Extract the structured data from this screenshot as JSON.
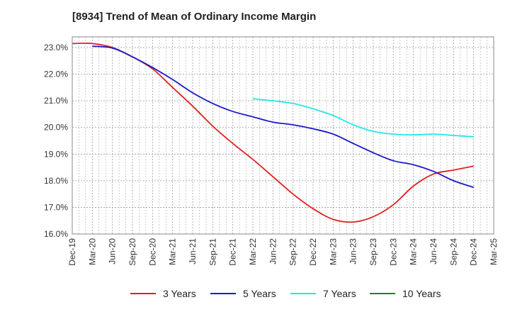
{
  "chart_data": {
    "type": "line",
    "title": "[8934]  Trend of Mean of Ordinary Income Margin",
    "xlabel": "",
    "ylabel": "",
    "x_categories": [
      "Dec-19",
      "Mar-20",
      "Jun-20",
      "Sep-20",
      "Dec-20",
      "Mar-21",
      "Jun-21",
      "Sep-21",
      "Dec-21",
      "Mar-22",
      "Jun-22",
      "Sep-22",
      "Dec-22",
      "Mar-23",
      "Jun-23",
      "Sep-23",
      "Dec-23",
      "Mar-24",
      "Jun-24",
      "Sep-24",
      "Dec-24",
      "Mar-25"
    ],
    "y_ticks": [
      "16.0%",
      "17.0%",
      "18.0%",
      "19.0%",
      "20.0%",
      "21.0%",
      "22.0%",
      "23.0%"
    ],
    "ylim": [
      16.0,
      23.4
    ],
    "grid": true,
    "legend_position": "bottom",
    "series": [
      {
        "name": "3 Years",
        "color": "#e02020",
        "x": [
          "Dec-19",
          "Mar-20",
          "Jun-20",
          "Sep-20",
          "Dec-20",
          "Mar-21",
          "Jun-21",
          "Sep-21",
          "Dec-21",
          "Mar-22",
          "Jun-22",
          "Sep-22",
          "Dec-22",
          "Mar-23",
          "Jun-23",
          "Sep-23",
          "Dec-23",
          "Mar-24",
          "Jun-24",
          "Sep-24",
          "Dec-24"
        ],
        "values": [
          23.15,
          23.15,
          23.0,
          22.65,
          22.2,
          21.5,
          20.8,
          20.05,
          19.4,
          18.8,
          18.15,
          17.5,
          16.95,
          16.55,
          16.45,
          16.65,
          17.1,
          17.8,
          18.25,
          18.4,
          18.55
        ]
      },
      {
        "name": "5 Years",
        "color": "#1a1acc",
        "x": [
          "Mar-20",
          "Jun-20",
          "Sep-20",
          "Dec-20",
          "Mar-21",
          "Jun-21",
          "Sep-21",
          "Dec-21",
          "Mar-22",
          "Jun-22",
          "Sep-22",
          "Dec-22",
          "Mar-23",
          "Jun-23",
          "Sep-23",
          "Dec-23",
          "Mar-24",
          "Jun-24",
          "Sep-24",
          "Dec-24"
        ],
        "values": [
          23.05,
          22.98,
          22.65,
          22.25,
          21.8,
          21.3,
          20.9,
          20.6,
          20.4,
          20.2,
          20.1,
          19.95,
          19.75,
          19.4,
          19.05,
          18.75,
          18.6,
          18.35,
          18.0,
          17.75
        ]
      },
      {
        "name": "7 Years",
        "color": "#22e8e8",
        "x": [
          "Mar-22",
          "Jun-22",
          "Sep-22",
          "Dec-22",
          "Mar-23",
          "Jun-23",
          "Sep-23",
          "Dec-23",
          "Mar-24",
          "Jun-24",
          "Sep-24",
          "Dec-24"
        ],
        "values": [
          21.08,
          21.0,
          20.9,
          20.7,
          20.45,
          20.1,
          19.85,
          19.75,
          19.72,
          19.75,
          19.7,
          19.65
        ]
      },
      {
        "name": "10 Years",
        "color": "#1a8a1a",
        "x": [],
        "values": []
      }
    ]
  }
}
